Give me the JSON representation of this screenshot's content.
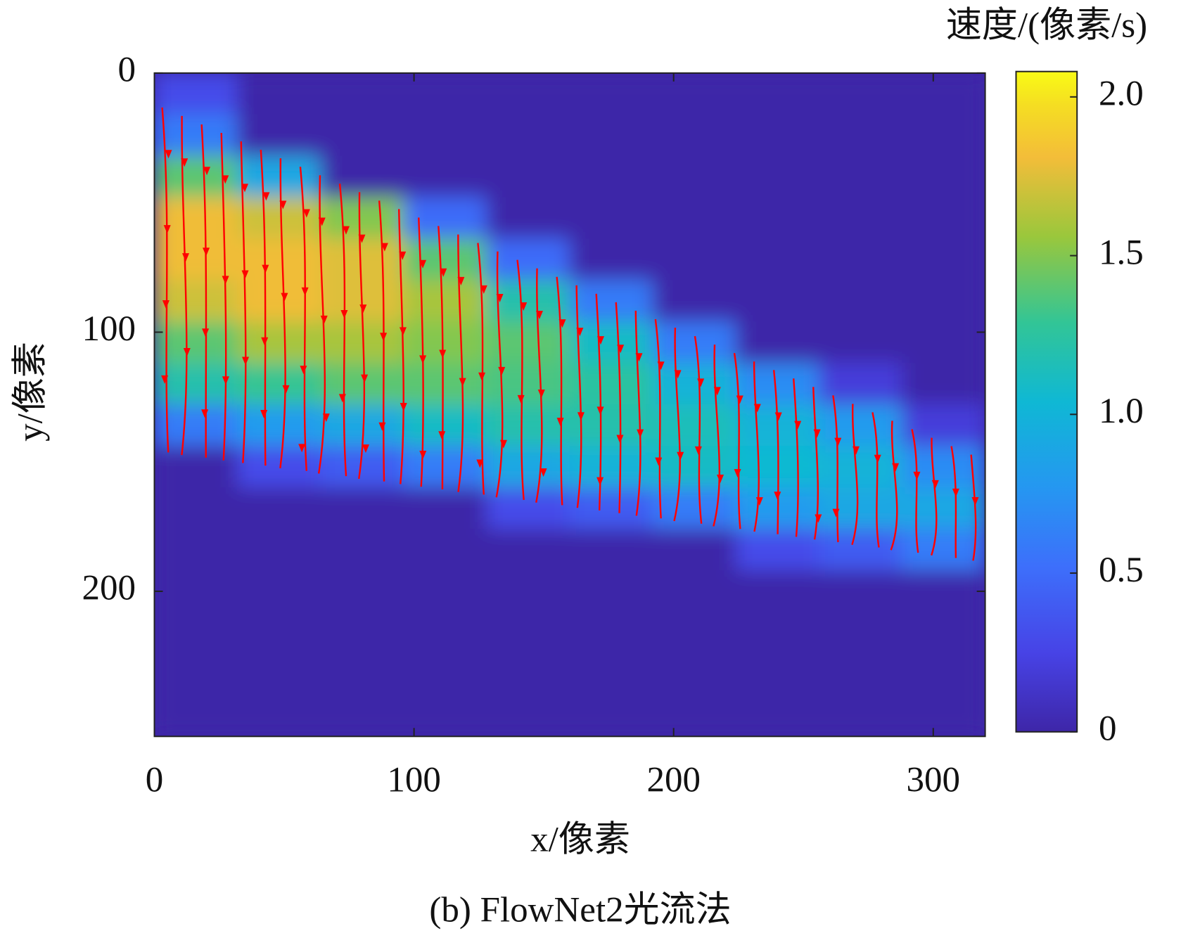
{
  "chart_data": {
    "type": "heatmap",
    "xlabel": "x/像素",
    "ylabel": "y/像素",
    "caption": "(b) FlowNet2光流法",
    "colorbar_label": "速度/(像素/s)",
    "xlim": [
      0,
      320
    ],
    "ylim": [
      0,
      256
    ],
    "y_reversed": true,
    "xticks": [
      0,
      100,
      200,
      300
    ],
    "yticks": [
      0,
      100,
      200
    ],
    "x": [
      16,
      48,
      80,
      112,
      144,
      176,
      208,
      240,
      272,
      304
    ],
    "y": [
      8,
      24,
      40,
      56,
      72,
      88,
      104,
      120,
      136,
      152,
      168,
      184,
      200,
      216,
      232,
      248
    ],
    "z": [
      [
        0.3,
        0,
        0,
        0,
        0,
        0,
        0,
        0,
        0,
        0
      ],
      [
        0.6,
        0,
        0,
        0,
        0,
        0,
        0,
        0,
        0,
        0
      ],
      [
        1.4,
        0.9,
        0,
        0,
        0,
        0,
        0,
        0,
        0,
        0
      ],
      [
        1.8,
        1.7,
        1.5,
        0.5,
        0,
        0,
        0,
        0,
        0,
        0
      ],
      [
        1.8,
        1.8,
        1.75,
        1.4,
        0.5,
        0,
        0,
        0,
        0,
        0
      ],
      [
        1.7,
        1.8,
        1.75,
        1.6,
        1.2,
        0.6,
        0,
        0,
        0,
        0
      ],
      [
        1.4,
        1.6,
        1.6,
        1.5,
        1.4,
        1.1,
        0.6,
        0,
        0,
        0
      ],
      [
        1.2,
        1.3,
        1.4,
        1.4,
        1.35,
        1.25,
        1.0,
        0.7,
        0.2,
        0
      ],
      [
        0.6,
        0.8,
        0.9,
        1.1,
        1.2,
        1.2,
        1.15,
        1.0,
        0.8,
        0.2
      ],
      [
        0,
        0.3,
        0.4,
        0.6,
        0.9,
        1.0,
        1.1,
        1.05,
        1.0,
        0.7
      ],
      [
        0,
        0,
        0,
        0,
        0.3,
        0.4,
        0.6,
        0.8,
        0.9,
        0.9
      ],
      [
        0,
        0,
        0,
        0,
        0,
        0,
        0,
        0.3,
        0.4,
        0.6
      ],
      [
        0,
        0,
        0,
        0,
        0,
        0,
        0,
        0,
        0,
        0
      ],
      [
        0,
        0,
        0,
        0,
        0,
        0,
        0,
        0,
        0,
        0
      ],
      [
        0,
        0,
        0,
        0,
        0,
        0,
        0,
        0,
        0,
        0
      ],
      [
        0,
        0,
        0,
        0,
        0,
        0,
        0,
        0,
        0,
        0
      ]
    ],
    "clim": [
      0,
      2.08
    ],
    "cticks": [
      0,
      0.5,
      {
        "value": 1,
        "label": "1.0"
      },
      1.5,
      {
        "value": 2,
        "label": "2.0"
      }
    ],
    "colormap": "parula",
    "streamline_color": "#ff0000"
  }
}
